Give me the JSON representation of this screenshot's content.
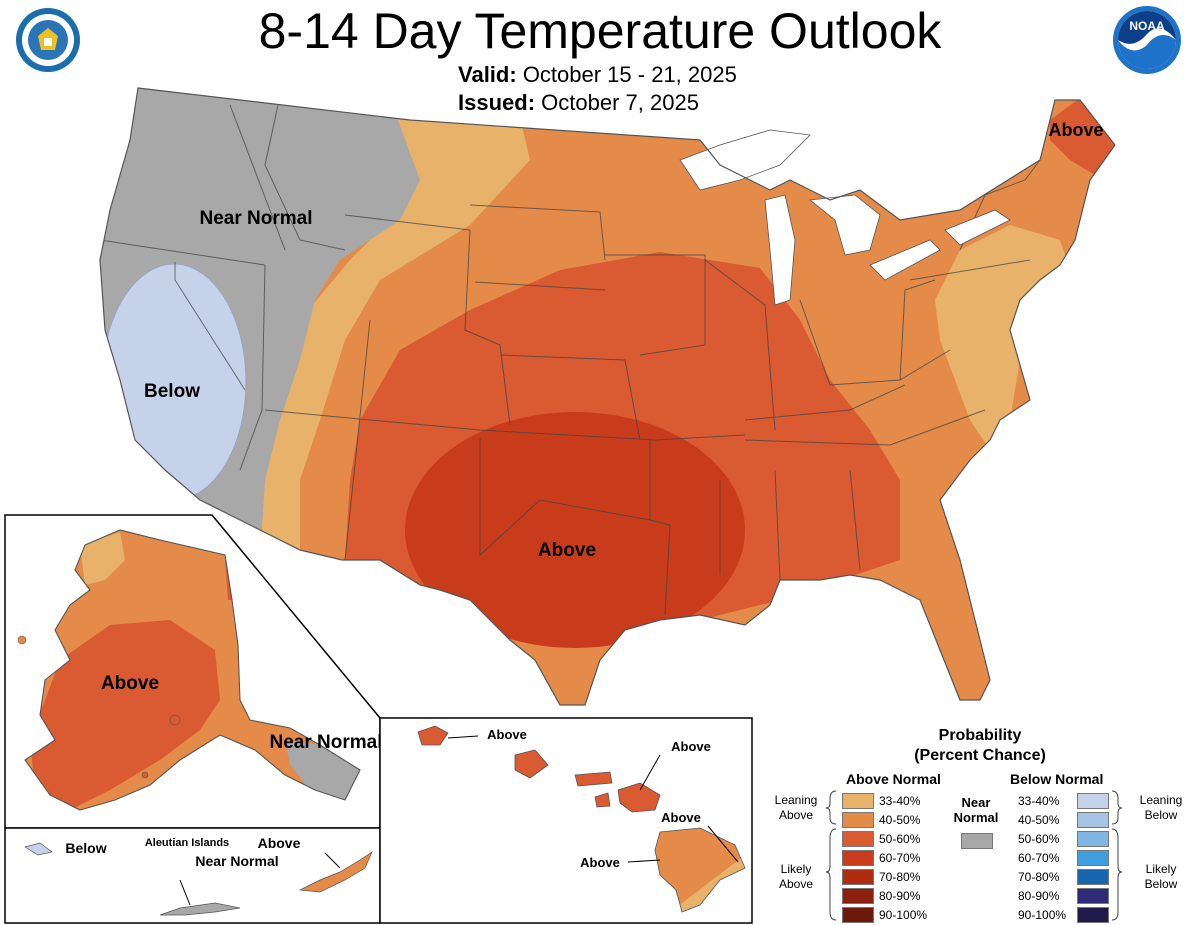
{
  "header": {
    "title": "8-14 Day Temperature Outlook",
    "valid_label": "Valid:",
    "valid_value": "October 15 - 21, 2025",
    "issued_label": "Issued:",
    "issued_value": "October 7, 2025",
    "left_logo": "department-of-commerce-seal",
    "right_logo": "noaa-logo",
    "right_logo_text": "NOAA"
  },
  "regions": {
    "conus_above": "Above",
    "conus_near_normal": "Near Normal",
    "conus_below": "Below",
    "northeast_above": "Above",
    "alaska_above": "Above",
    "alaska_near_normal": "Near Normal",
    "aleutian_title": "Aleutian Islands",
    "aleutian_below": "Below",
    "aleutian_near_normal": "Near Normal",
    "aleutian_above": "Above",
    "hawaii_labels": [
      "Above",
      "Above",
      "Above",
      "Above"
    ]
  },
  "legend": {
    "title_line1": "Probability",
    "title_line2": "(Percent Chance)",
    "above_header": "Above Normal",
    "below_header": "Below Normal",
    "near_normal_label": "Near Normal",
    "near_normal_color": "#a8a8a8",
    "leaning_above": "Leaning Above",
    "likely_above": "Likely Above",
    "leaning_below": "Leaning Below",
    "likely_below": "Likely Below",
    "ranges": [
      "33-40%",
      "40-50%",
      "50-60%",
      "60-70%",
      "70-80%",
      "80-90%",
      "90-100%"
    ],
    "above_colors": [
      "#e8b26a",
      "#e48b4a",
      "#da5a32",
      "#c83c1c",
      "#b02c10",
      "#8e2010",
      "#6e1a0a"
    ],
    "below_colors": [
      "#c6d2ea",
      "#a7c4e4",
      "#80b6e4",
      "#3e9ede",
      "#1566ae",
      "#2e2a78",
      "#201a4a"
    ]
  },
  "colors": {
    "cat_above_33_40": "#e8b26a",
    "cat_above_40_50": "#e48b4a",
    "cat_above_50_60": "#da5a32",
    "cat_above_60_70": "#c83c1c",
    "cat_near_normal": "#a8a8a8",
    "cat_below_33_40": "#c6d2ea"
  }
}
